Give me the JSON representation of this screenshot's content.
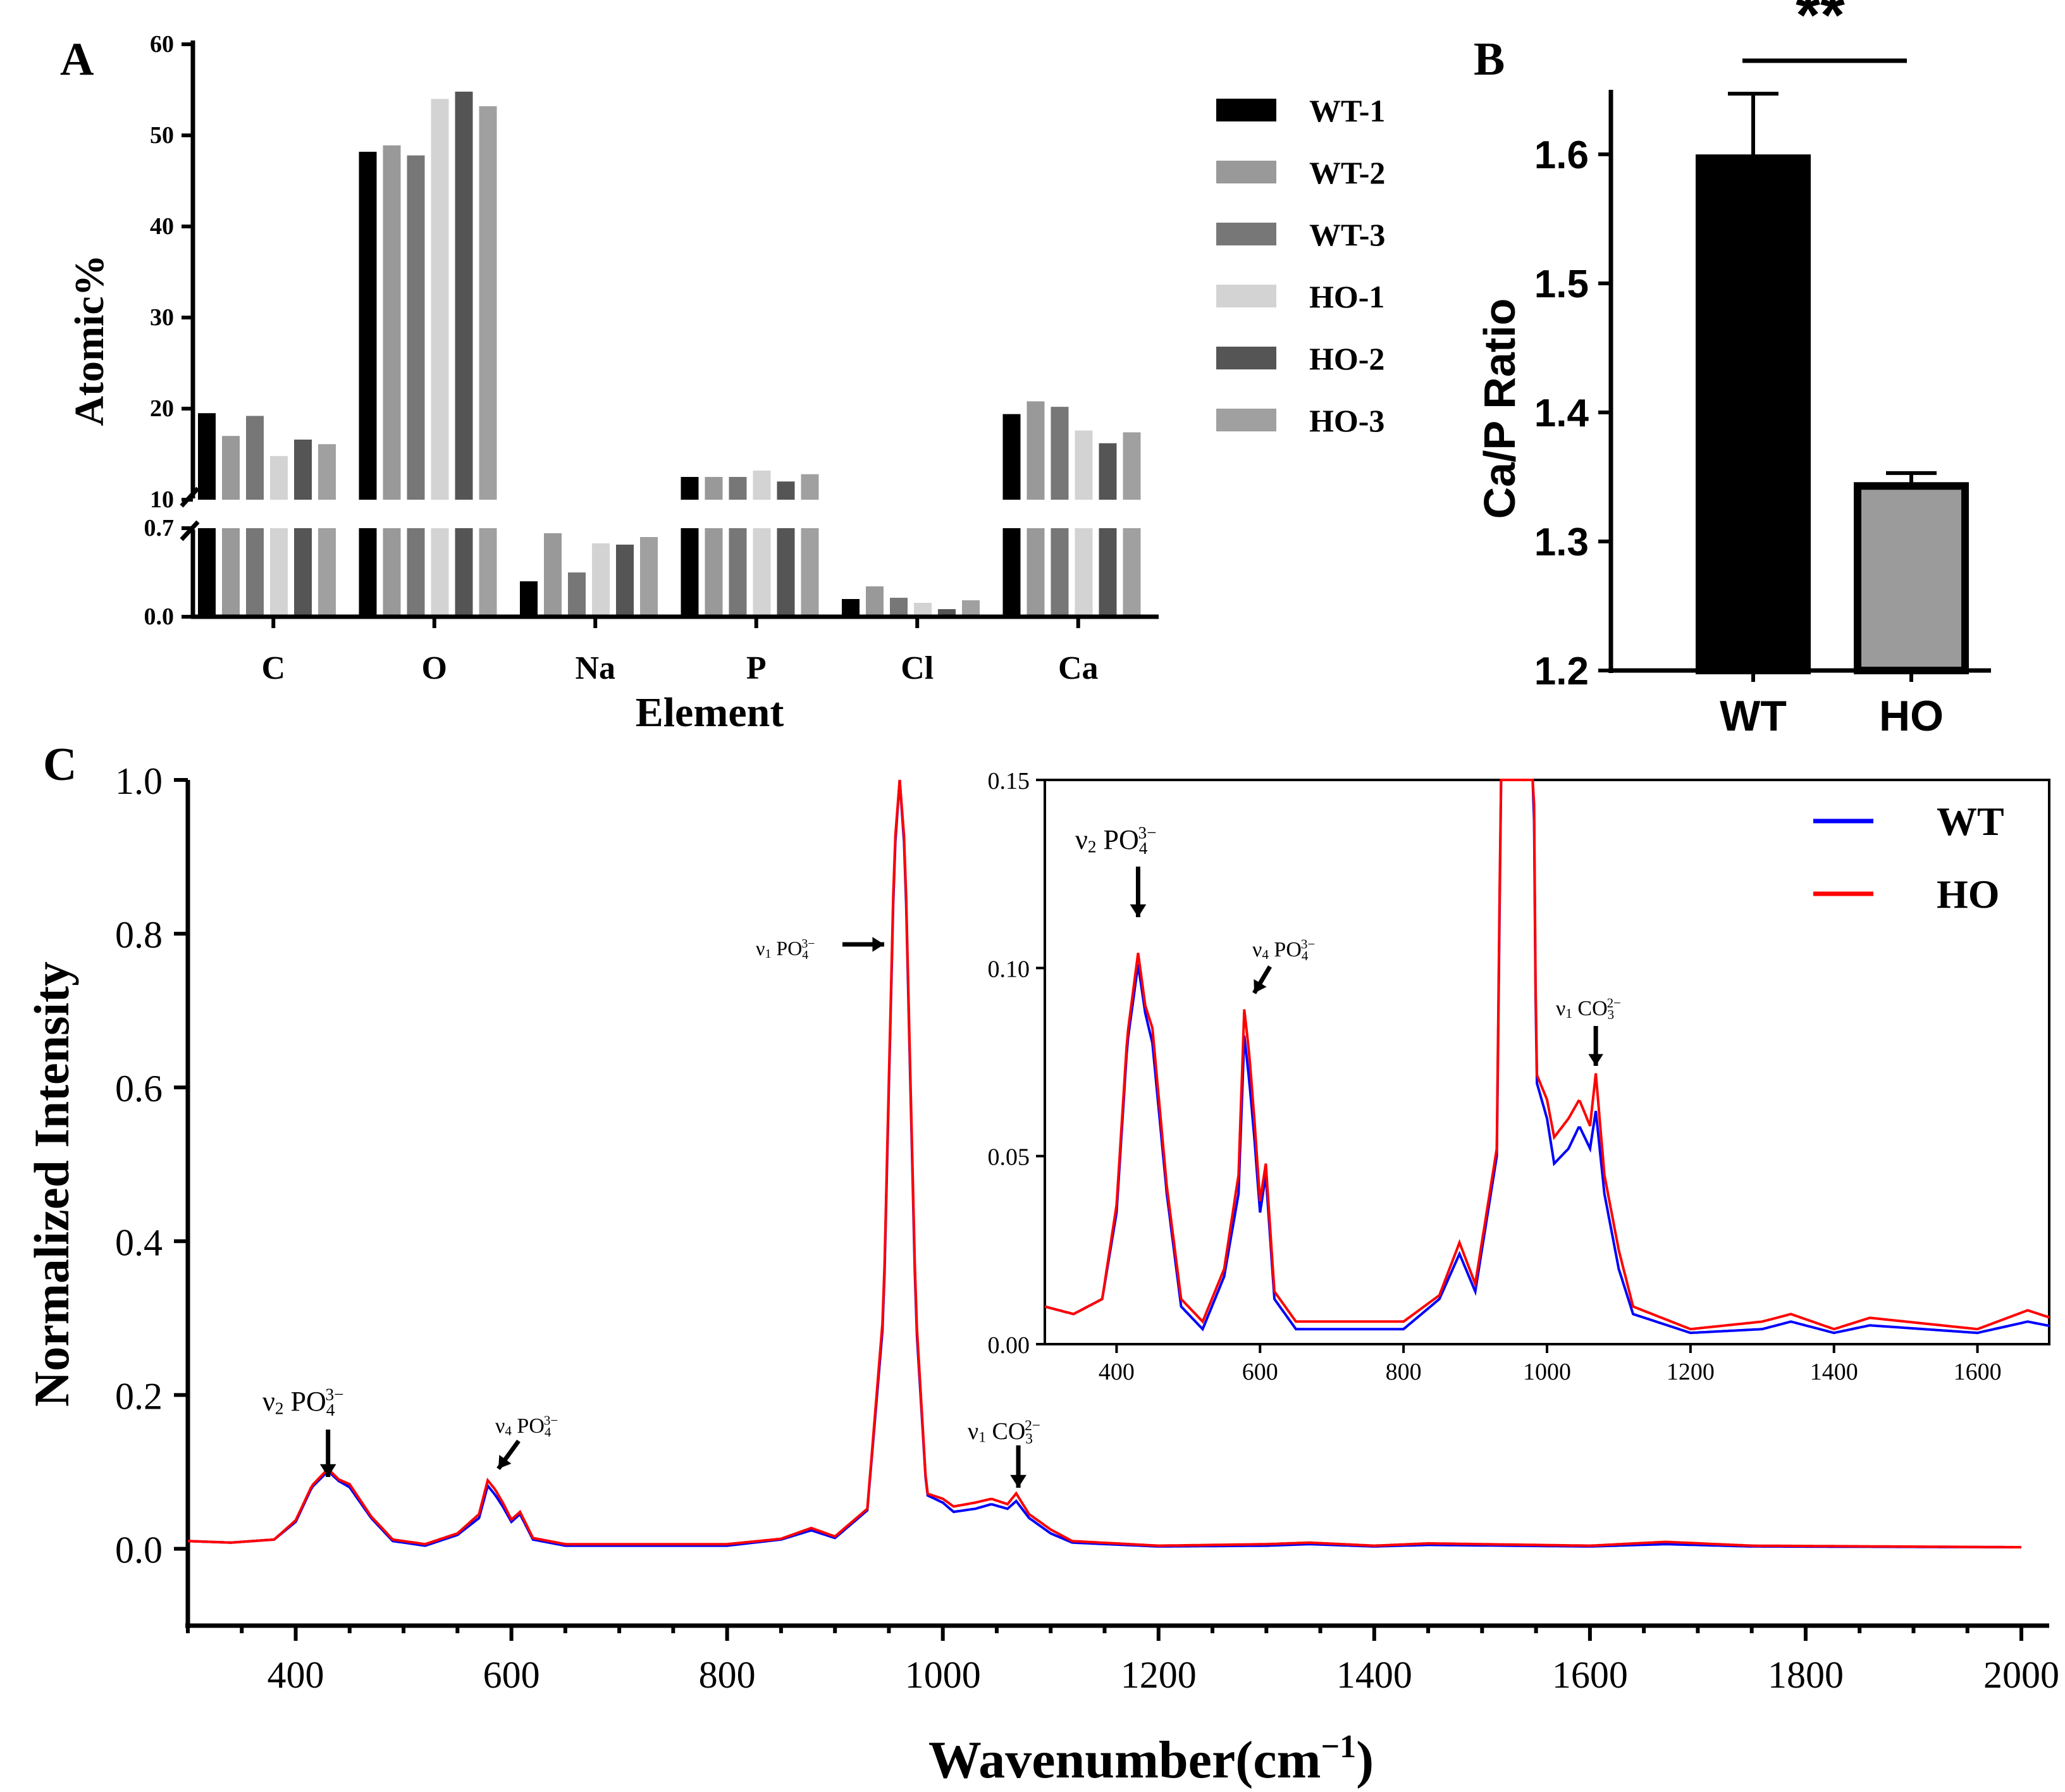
{
  "chart_data": [
    {
      "panel": "A",
      "type": "bar",
      "xlabel": "Element",
      "ylabel": "Atomic%",
      "categories": [
        "C",
        "O",
        "Na",
        "P",
        "Cl",
        "Ca"
      ],
      "axis_break": {
        "lower": [
          0.0,
          0.7
        ],
        "upper": [
          10,
          60
        ]
      },
      "lower_ticks": [
        "0.0",
        "0.7"
      ],
      "upper_ticks": [
        "10",
        "20",
        "30",
        "40",
        "50",
        "60"
      ],
      "series": [
        {
          "name": "WT-1",
          "color": "#000000",
          "values": [
            19.5,
            48.2,
            0.28,
            12.5,
            0.14,
            19.4
          ]
        },
        {
          "name": "WT-2",
          "color": "#999999",
          "values": [
            17.0,
            48.9,
            0.66,
            12.5,
            0.24,
            20.8
          ]
        },
        {
          "name": "WT-3",
          "color": "#777777",
          "values": [
            19.2,
            47.8,
            0.35,
            12.5,
            0.15,
            20.2
          ]
        },
        {
          "name": "HO-1",
          "color": "#d3d3d3",
          "values": [
            14.8,
            54.0,
            0.58,
            13.2,
            0.11,
            17.6
          ]
        },
        {
          "name": "HO-2",
          "color": "#555555",
          "values": [
            16.6,
            54.8,
            0.57,
            12.0,
            0.06,
            16.2
          ]
        },
        {
          "name": "HO-3",
          "color": "#a0a0a0",
          "values": [
            16.1,
            53.2,
            0.63,
            12.8,
            0.13,
            17.4
          ]
        }
      ]
    },
    {
      "panel": "B",
      "type": "bar",
      "ylabel": "Ca/P Ratio",
      "categories": [
        "WT",
        "HO"
      ],
      "values": [
        1.597,
        1.343
      ],
      "errors": [
        0.05,
        0.01
      ],
      "ylim": [
        1.2,
        1.65
      ],
      "yticks": [
        "1.2",
        "1.3",
        "1.4",
        "1.5",
        "1.6"
      ],
      "significance": "**",
      "colors": [
        "#000000",
        "#9b9b9b"
      ]
    },
    {
      "panel": "C",
      "type": "line",
      "xlabel": "Wavenumber(cm",
      "xlabel_sup": "−1",
      "xlabel_close": ")",
      "ylabel": "Normalized Intensity",
      "xlim": [
        300,
        2000
      ],
      "ylim": [
        -0.1,
        1.0
      ],
      "xticks": [
        "400",
        "600",
        "800",
        "1000",
        "1200",
        "1400",
        "1600",
        "1800",
        "2000"
      ],
      "yticks": [
        "0.0",
        "0.2",
        "0.4",
        "0.6",
        "0.8",
        "1.0"
      ],
      "series": [
        {
          "name": "WT",
          "color": "#0000ff"
        },
        {
          "name": "HO",
          "color": "#ff0000"
        }
      ],
      "annotations": [
        {
          "id": "v2",
          "nu": "ν",
          "sub": "2",
          "ion": "PO",
          "ion_sub": "4",
          "ion_sup": "3−",
          "x": 430
        },
        {
          "id": "v4",
          "nu": "ν",
          "sub": "4",
          "ion": "PO",
          "ion_sub": "4",
          "ion_sup": "3−",
          "x": 585
        },
        {
          "id": "v1p",
          "nu": "ν",
          "sub": "1",
          "ion": "PO",
          "ion_sub": "4",
          "ion_sup": "3−",
          "x": 958
        },
        {
          "id": "v1c",
          "nu": "ν",
          "sub": "1",
          "ion": "CO",
          "ion_sub": "3",
          "ion_sup": "2−",
          "x": 1070
        }
      ],
      "inset": {
        "xlim": [
          300,
          1700
        ],
        "ylim": [
          0.0,
          0.15
        ],
        "xticks": [
          "400",
          "600",
          "800",
          "1000",
          "1200",
          "1400",
          "1600"
        ],
        "yticks": [
          "0.00",
          "0.05",
          "0.10",
          "0.15"
        ]
      }
    }
  ],
  "panel_labels": {
    "a": "A",
    "b": "B",
    "c": "C"
  }
}
